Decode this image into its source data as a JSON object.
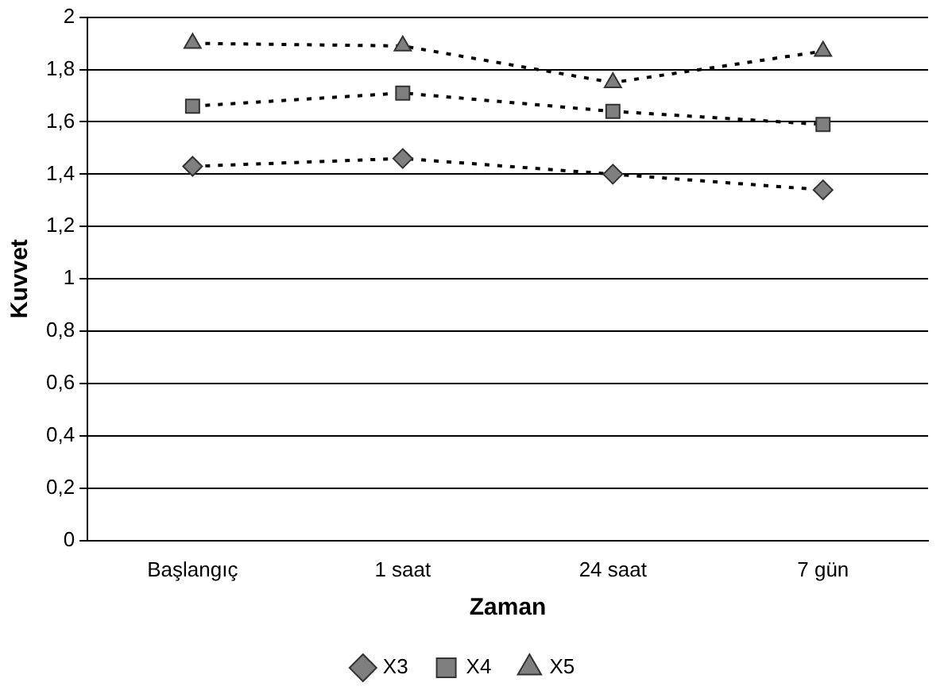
{
  "chart_data": {
    "type": "line",
    "xlabel": "Zaman",
    "ylabel": "Kuvvet",
    "categories": [
      "Başlangıç",
      "1 saat",
      "24 saat",
      "7 gün"
    ],
    "series": [
      {
        "name": "X3",
        "color": "#7f7f7f",
        "marker": "diamond",
        "values": [
          1.43,
          1.46,
          1.4,
          1.34
        ]
      },
      {
        "name": "X4",
        "color": "#7f7f7f",
        "marker": "square",
        "values": [
          1.66,
          1.71,
          1.64,
          1.59
        ]
      },
      {
        "name": "X5",
        "color": "#7f7f7f",
        "marker": "triangle",
        "values": [
          1.9,
          1.89,
          1.75,
          1.87
        ]
      }
    ],
    "ylim": [
      0,
      2
    ],
    "yticks": [
      0,
      {
        "value": 0.2,
        "label": "0,2"
      },
      {
        "value": 0.4,
        "label": "0,4"
      },
      {
        "value": 0.6,
        "label": "0,6"
      },
      {
        "value": 0.8,
        "label": "0,8"
      },
      1,
      {
        "value": 1.2,
        "label": "1,2"
      },
      {
        "value": 1.4,
        "label": "1,4"
      },
      {
        "value": 1.6,
        "label": "1,6"
      },
      {
        "value": 1.8,
        "label": "1,8"
      },
      2
    ],
    "grid": "y",
    "legend": "bottom",
    "line_style": "dotted"
  }
}
